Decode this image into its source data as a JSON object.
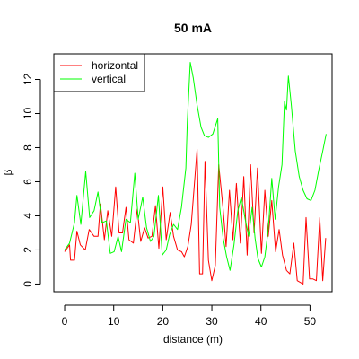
{
  "chart_data": {
    "type": "line",
    "title": "50 mA",
    "xlabel": "distance (m)",
    "ylabel": "β",
    "xlim": [
      -2.2,
      54.5
    ],
    "ylim": [
      -0.45,
      13.5
    ],
    "xticks": [
      0,
      10,
      20,
      30,
      40,
      50
    ],
    "yticks": [
      0,
      2,
      4,
      6,
      8,
      10,
      12
    ],
    "grid": false,
    "legend_position": "top-left",
    "series": [
      {
        "name": "horizontal",
        "color": "#ff0000",
        "points": [
          [
            0.0,
            1.9
          ],
          [
            1.0,
            2.3
          ],
          [
            1.2,
            1.4
          ],
          [
            2.0,
            1.4
          ],
          [
            2.5,
            3.1
          ],
          [
            3.2,
            2.3
          ],
          [
            4.2,
            2.0
          ],
          [
            5.0,
            3.2
          ],
          [
            6.0,
            2.8
          ],
          [
            6.8,
            2.8
          ],
          [
            7.3,
            4.7
          ],
          [
            8.1,
            2.6
          ],
          [
            8.8,
            4.3
          ],
          [
            9.6,
            2.8
          ],
          [
            10.4,
            5.7
          ],
          [
            11.1,
            3.0
          ],
          [
            11.8,
            3.0
          ],
          [
            12.5,
            4.5
          ],
          [
            13.1,
            2.6
          ],
          [
            14.0,
            2.4
          ],
          [
            14.8,
            4.4
          ],
          [
            15.5,
            2.5
          ],
          [
            16.3,
            3.3
          ],
          [
            17.0,
            2.7
          ],
          [
            17.8,
            2.8
          ],
          [
            18.5,
            4.6
          ],
          [
            19.2,
            2.1
          ],
          [
            20.0,
            5.7
          ],
          [
            20.7,
            2.6
          ],
          [
            21.5,
            4.2
          ],
          [
            22.2,
            2.8
          ],
          [
            23.0,
            2.0
          ],
          [
            23.8,
            1.9
          ],
          [
            24.4,
            1.6
          ],
          [
            25.1,
            2.2
          ],
          [
            25.8,
            3.5
          ],
          [
            27.0,
            7.9
          ],
          [
            27.5,
            0.6
          ],
          [
            28.1,
            0.6
          ],
          [
            28.6,
            7.2
          ],
          [
            29.3,
            1.4
          ],
          [
            30.0,
            0.2
          ],
          [
            30.7,
            1.1
          ],
          [
            31.4,
            7.0
          ],
          [
            32.3,
            4.4
          ],
          [
            32.9,
            2.2
          ],
          [
            33.6,
            5.5
          ],
          [
            34.3,
            2.6
          ],
          [
            35.0,
            5.9
          ],
          [
            35.8,
            2.4
          ],
          [
            36.5,
            6.3
          ],
          [
            37.2,
            1.7
          ],
          [
            37.9,
            7.0
          ],
          [
            38.6,
            3.0
          ],
          [
            39.3,
            6.8
          ],
          [
            40.1,
            1.8
          ],
          [
            40.8,
            5.5
          ],
          [
            41.5,
            2.8
          ],
          [
            42.2,
            4.9
          ],
          [
            43.0,
            1.9
          ],
          [
            43.7,
            3.2
          ],
          [
            44.4,
            1.7
          ],
          [
            45.2,
            0.8
          ],
          [
            45.9,
            0.6
          ],
          [
            46.7,
            2.4
          ],
          [
            47.4,
            0.2
          ],
          [
            48.0,
            0.1
          ],
          [
            48.6,
            0.0
          ],
          [
            49.2,
            3.9
          ],
          [
            49.9,
            0.3
          ],
          [
            50.6,
            0.3
          ],
          [
            51.3,
            0.2
          ],
          [
            52.0,
            3.9
          ],
          [
            52.6,
            0.2
          ],
          [
            53.2,
            2.7
          ]
        ]
      },
      {
        "name": "vertical",
        "color": "#00ff00",
        "points": [
          [
            0.0,
            2.0
          ],
          [
            1.0,
            2.4
          ],
          [
            2.0,
            3.6
          ],
          [
            2.5,
            5.2
          ],
          [
            3.3,
            3.5
          ],
          [
            4.3,
            6.6
          ],
          [
            5.1,
            3.9
          ],
          [
            6.0,
            4.3
          ],
          [
            6.8,
            5.4
          ],
          [
            7.6,
            3.6
          ],
          [
            8.5,
            3.7
          ],
          [
            9.3,
            1.8
          ],
          [
            10.1,
            1.9
          ],
          [
            10.9,
            2.8
          ],
          [
            11.6,
            1.9
          ],
          [
            12.5,
            3.8
          ],
          [
            13.4,
            3.6
          ],
          [
            14.3,
            6.5
          ],
          [
            15.0,
            3.8
          ],
          [
            15.9,
            5.1
          ],
          [
            16.7,
            3.3
          ],
          [
            17.5,
            2.5
          ],
          [
            18.2,
            2.8
          ],
          [
            19.1,
            5.2
          ],
          [
            19.9,
            1.7
          ],
          [
            20.7,
            2.0
          ],
          [
            21.4,
            2.9
          ],
          [
            22.2,
            3.5
          ],
          [
            23.0,
            3.2
          ],
          [
            23.8,
            4.5
          ],
          [
            24.7,
            6.8
          ],
          [
            25.0,
            9.5
          ],
          [
            25.3,
            11.3
          ],
          [
            25.6,
            13.0
          ],
          [
            26.2,
            12.1
          ],
          [
            27.0,
            10.5
          ],
          [
            27.8,
            9.2
          ],
          [
            28.5,
            8.7
          ],
          [
            29.3,
            8.6
          ],
          [
            30.2,
            8.8
          ],
          [
            31.2,
            9.7
          ],
          [
            31.6,
            4.5
          ],
          [
            32.3,
            2.7
          ],
          [
            33.0,
            1.6
          ],
          [
            33.7,
            0.8
          ],
          [
            34.5,
            2.3
          ],
          [
            35.3,
            4.3
          ],
          [
            36.0,
            5.1
          ],
          [
            36.8,
            3.8
          ],
          [
            37.5,
            2.8
          ],
          [
            38.2,
            4.5
          ],
          [
            38.8,
            2.7
          ],
          [
            39.4,
            1.5
          ],
          [
            40.1,
            1.0
          ],
          [
            40.8,
            1.6
          ],
          [
            41.5,
            3.2
          ],
          [
            42.2,
            6.2
          ],
          [
            42.9,
            3.8
          ],
          [
            43.6,
            5.7
          ],
          [
            44.3,
            7.0
          ],
          [
            44.8,
            10.7
          ],
          [
            45.2,
            10.2
          ],
          [
            45.6,
            12.2
          ],
          [
            46.2,
            10.5
          ],
          [
            47.0,
            7.8
          ],
          [
            47.8,
            6.3
          ],
          [
            48.6,
            5.5
          ],
          [
            49.4,
            5.0
          ],
          [
            50.2,
            4.9
          ],
          [
            51.0,
            5.5
          ],
          [
            51.8,
            6.7
          ],
          [
            52.6,
            7.8
          ],
          [
            53.3,
            8.8
          ]
        ]
      }
    ]
  }
}
